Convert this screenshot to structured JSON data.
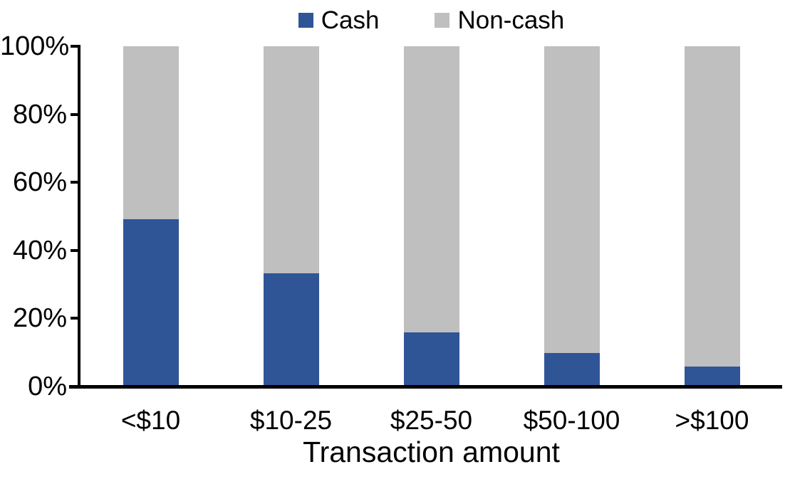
{
  "chart_data": {
    "type": "bar",
    "subtype": "stacked-100-percent",
    "categories": [
      "<$10",
      "$10-25",
      "$25-50",
      "$50-100",
      ">$100"
    ],
    "series": [
      {
        "name": "Cash",
        "color": "#2F5597",
        "values": [
          49,
          33,
          15.5,
          9.5,
          5.5
        ]
      },
      {
        "name": "Non-cash",
        "color": "#BFBFBF",
        "values": [
          51,
          67,
          84.5,
          90.5,
          94.5
        ]
      }
    ],
    "title": "",
    "xlabel": "Transaction amount",
    "ylabel": "",
    "ylim": [
      0,
      100
    ],
    "ytick_labels": [
      "0%",
      "20%",
      "40%",
      "60%",
      "80%",
      "100%"
    ],
    "grid": "off",
    "legend_position": "top-center",
    "axis_color": "#000000",
    "text_color": "#000000",
    "background_color": "#FFFFFF"
  }
}
